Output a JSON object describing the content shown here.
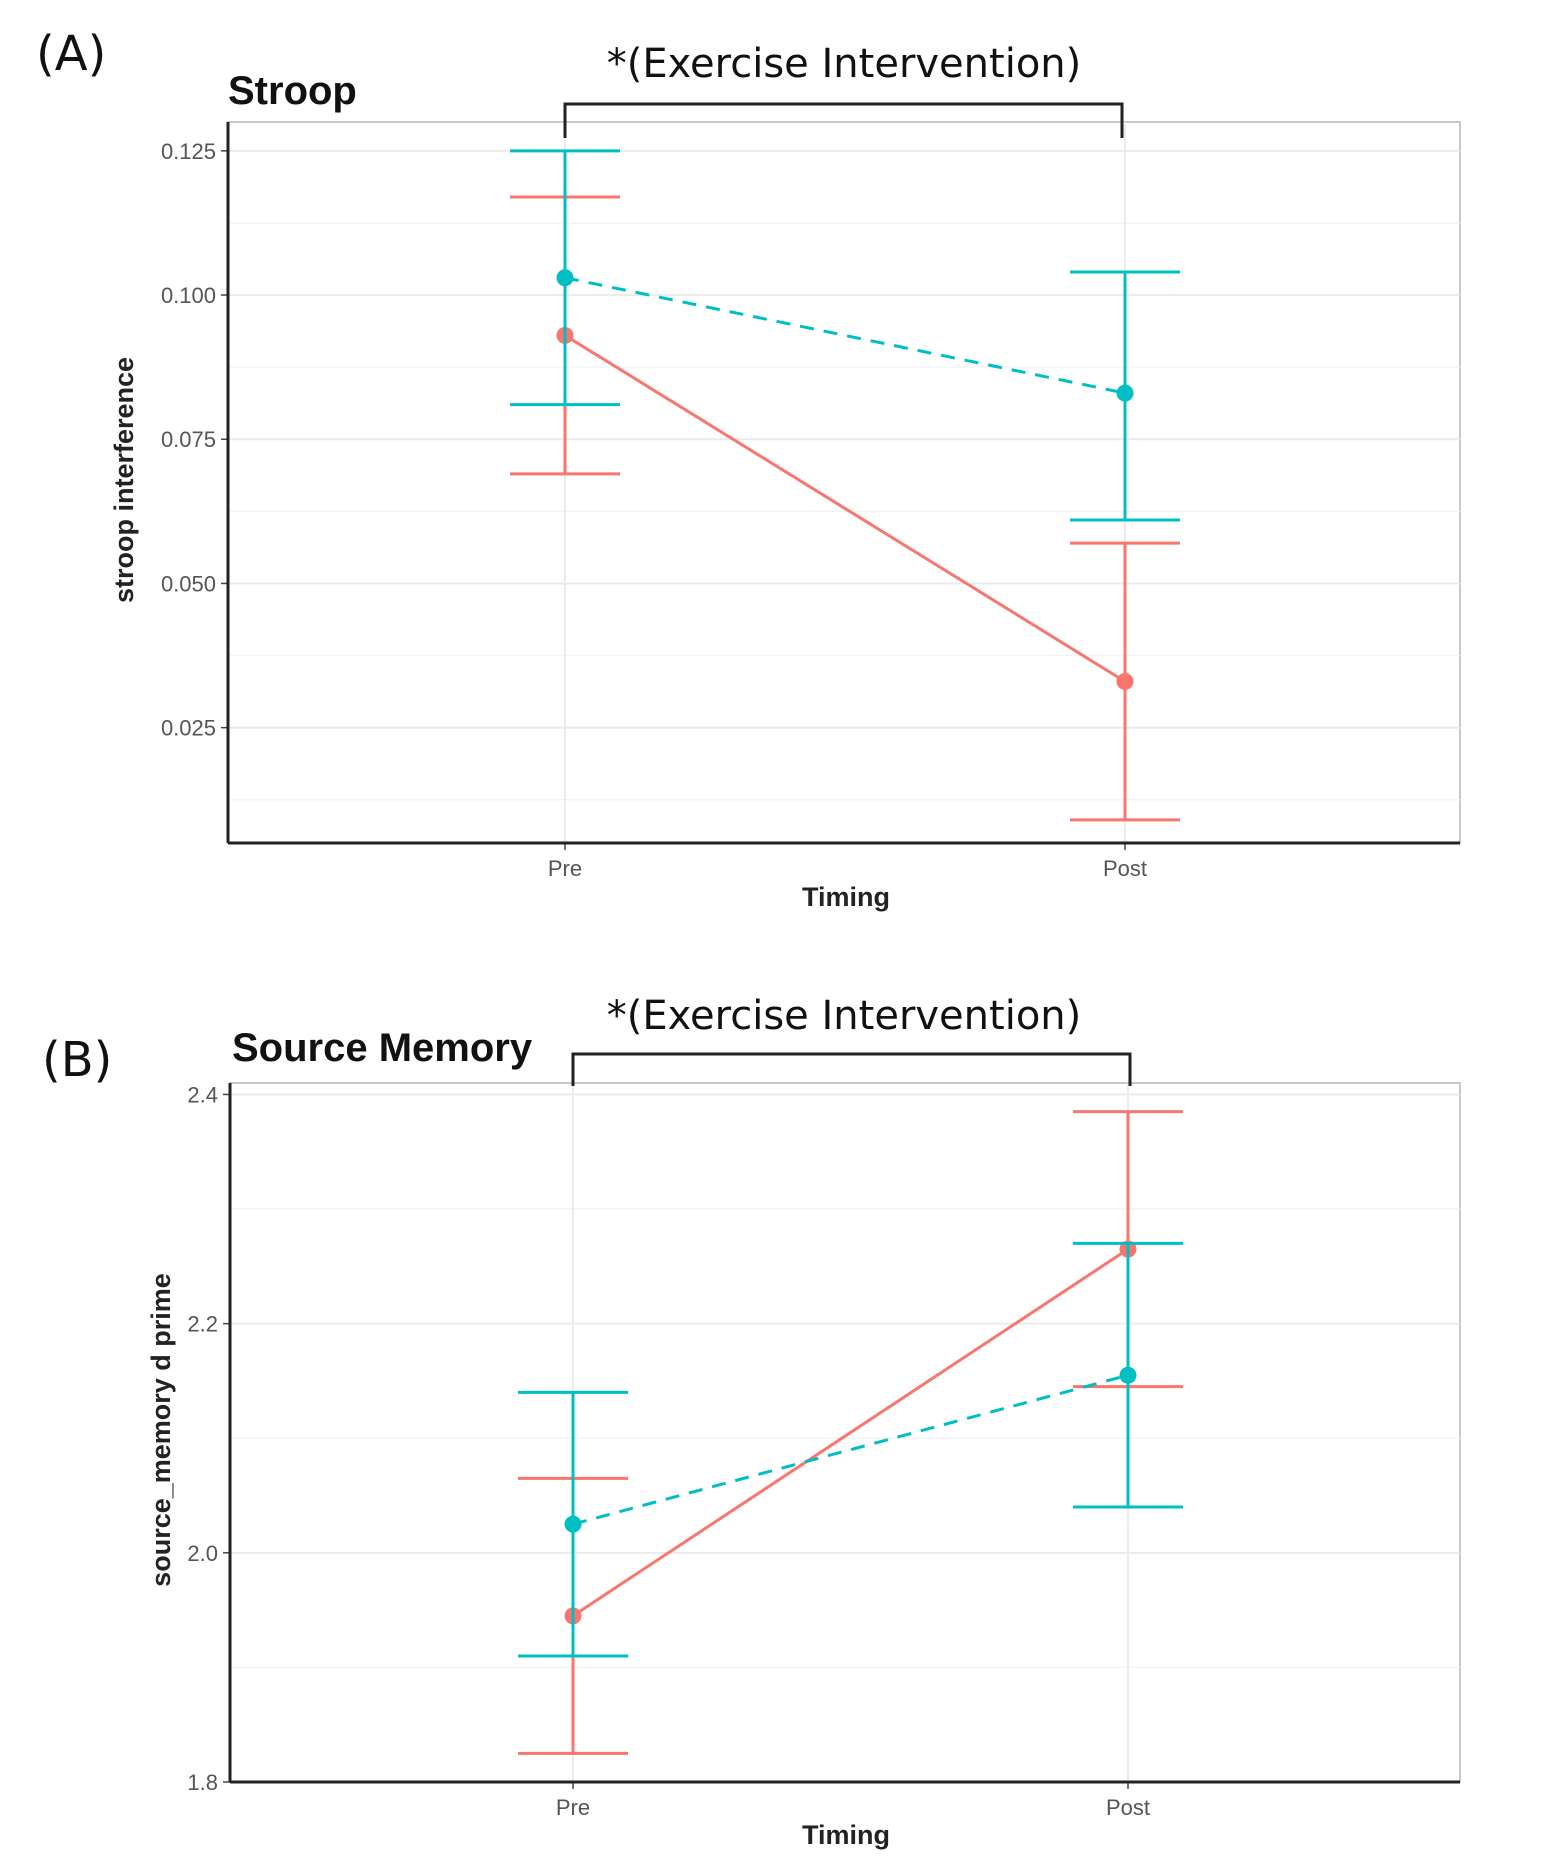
{
  "panels": [
    {
      "panel_label": "(A)",
      "significance_label": "*(Exercise Intervention)",
      "colors": {
        "series_1": "#f8766d",
        "series_2": "#00bfc4"
      }
    },
    {
      "panel_label": "(B)",
      "significance_label": "*(Exercise Intervention)",
      "colors": {
        "series_1": "#f8766d",
        "series_2": "#00bfc4"
      }
    }
  ],
  "chart_data": [
    {
      "type": "line",
      "title": "Stroop",
      "xlabel": "Timing",
      "ylabel": "stroop interference",
      "categories": [
        "Pre",
        "Post"
      ],
      "ylim": [
        0.005,
        0.13
      ],
      "yticks": [
        "0.025",
        "0.050",
        "0.075",
        "0.100",
        "0.125"
      ],
      "grid": true,
      "series": [
        {
          "style": "solid",
          "color": "#f8766d",
          "values": [
            0.093,
            0.033
          ],
          "lower": [
            0.069,
            0.009
          ],
          "upper": [
            0.117,
            0.057
          ]
        },
        {
          "style": "dashed",
          "color": "#00bfc4",
          "values": [
            0.103,
            0.083
          ],
          "lower": [
            0.081,
            0.061
          ],
          "upper": [
            0.125,
            0.104
          ]
        }
      ]
    },
    {
      "type": "line",
      "title": "Source Memory",
      "xlabel": "Timing",
      "ylabel": "source_memory d prime",
      "categories": [
        "Pre",
        "Post"
      ],
      "ylim": [
        1.8,
        2.4
      ],
      "yticks": [
        "1.8",
        "2.0",
        "2.2",
        "2.4"
      ],
      "grid": true,
      "series": [
        {
          "style": "solid",
          "color": "#f8766d",
          "values": [
            1.945,
            2.265
          ],
          "lower": [
            1.825,
            2.145
          ],
          "upper": [
            2.065,
            2.385
          ]
        },
        {
          "style": "dashed",
          "color": "#00bfc4",
          "values": [
            2.025,
            2.155
          ],
          "lower": [
            1.91,
            2.04
          ],
          "upper": [
            2.14,
            2.27
          ]
        }
      ]
    }
  ]
}
